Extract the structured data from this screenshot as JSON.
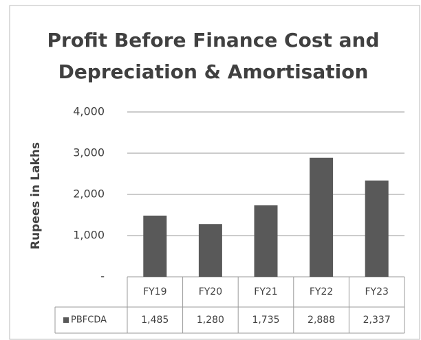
{
  "chart_data": {
    "type": "bar",
    "title": "Profit Before Finance Cost and Depreciation & Amortisation",
    "ylabel": "Rupees in Lakhs",
    "categories": [
      "FY19",
      "FY20",
      "FY21",
      "FY22",
      "FY23"
    ],
    "series": [
      {
        "name": "PBFCDA",
        "color": "#595959",
        "values": [
          1485,
          1280,
          1735,
          2888,
          2337
        ],
        "value_labels": [
          "1,485",
          "1,280",
          "1,735",
          "2,888",
          "2,337"
        ]
      }
    ],
    "ylim": [
      0,
      4000
    ],
    "yticks": [
      {
        "value": 0,
        "label": "-"
      },
      {
        "value": 1000,
        "label": "1,000"
      },
      {
        "value": 2000,
        "label": "2,000"
      },
      {
        "value": 3000,
        "label": "3,000"
      },
      {
        "value": 4000,
        "label": "4,000"
      }
    ],
    "grid": true
  }
}
